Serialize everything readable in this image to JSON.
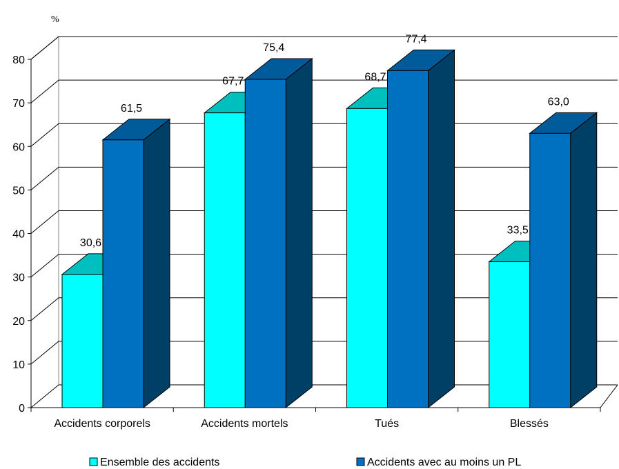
{
  "chart_data": {
    "type": "bar",
    "title": "",
    "ylabel": "%",
    "xlabel": "",
    "ylim": [
      0,
      80
    ],
    "yticks": [
      0,
      10,
      20,
      30,
      40,
      50,
      60,
      70,
      80
    ],
    "grid": true,
    "three_d": true,
    "legend_position": "bottom",
    "categories": [
      "Accidents corporels",
      "Accidents mortels",
      "Tués",
      "Blessés"
    ],
    "series": [
      {
        "name": "Ensemble des accidents",
        "values": [
          30.6,
          67.7,
          68.7,
          33.5
        ],
        "labels": [
          "30,6",
          "67,7",
          "68,7",
          "33,5"
        ],
        "color": "#00FFFF",
        "top_color": "#00BFBF",
        "side_color": "#008080"
      },
      {
        "name": "Accidents avec au moins un PL",
        "values": [
          61.5,
          75.4,
          77.4,
          63.0
        ],
        "labels": [
          "61,5",
          "75,4",
          "77,4",
          "63,0"
        ],
        "color": "#0070C0",
        "top_color": "#005B9A",
        "side_color": "#003F66"
      }
    ]
  }
}
